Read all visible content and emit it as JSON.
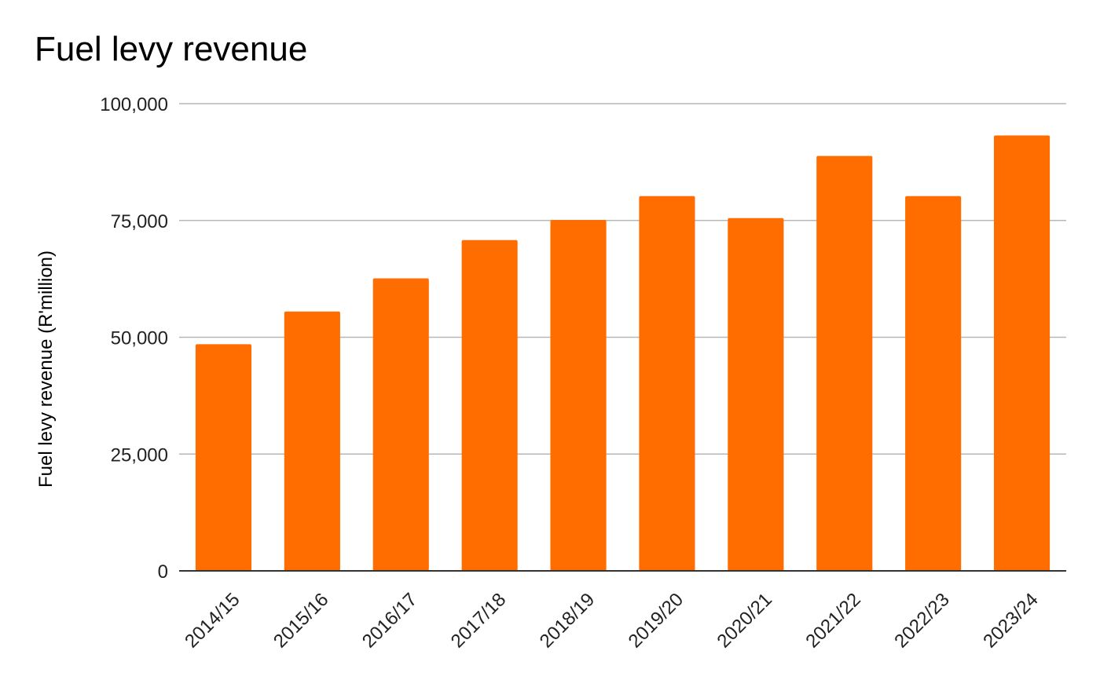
{
  "chart_data": {
    "type": "bar",
    "title": "Fuel levy revenue",
    "xlabel": "",
    "ylabel": "Fuel levy revenue (R'million)",
    "categories": [
      "2014/15",
      "2015/16",
      "2016/17",
      "2017/18",
      "2018/19",
      "2019/20",
      "2020/21",
      "2021/22",
      "2022/23",
      "2023/24"
    ],
    "values": [
      48500,
      55500,
      62600,
      70800,
      75100,
      80200,
      75500,
      88800,
      80200,
      93200
    ],
    "ylim": [
      0,
      100000
    ],
    "yticks": [
      0,
      25000,
      50000,
      75000,
      100000
    ],
    "ytick_labels": [
      "0",
      "25,000",
      "50,000",
      "75,000",
      "100,000"
    ],
    "grid": true,
    "bar_color": "#ff6d01",
    "grid_color": "#b7b7b7",
    "axis_color": "#333333"
  }
}
